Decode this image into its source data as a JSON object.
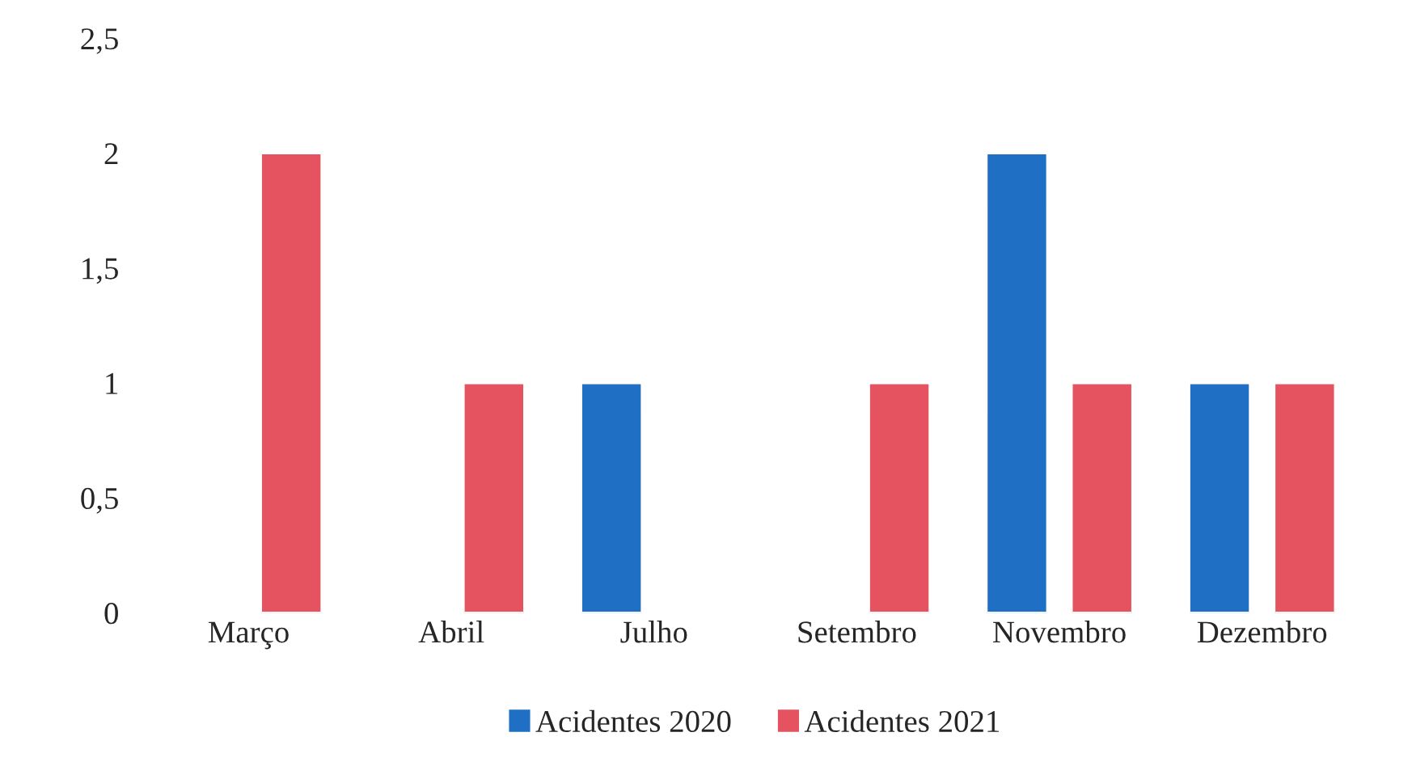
{
  "chart_data": {
    "type": "bar",
    "categories": [
      "Março",
      "Abril",
      "Julho",
      "Setembro",
      "Novembro",
      "Dezembro"
    ],
    "series": [
      {
        "name": "Acidentes 2020",
        "color": "#1f6fc5",
        "values": [
          null,
          null,
          1,
          null,
          2,
          1
        ]
      },
      {
        "name": "Acidentes 2021",
        "color": "#e4535f",
        "values": [
          2,
          1,
          null,
          1,
          1,
          1
        ]
      }
    ],
    "ylim": [
      0,
      2.5
    ],
    "yticks": [
      0,
      {
        "value": 0.5,
        "label": "0,5"
      },
      1,
      {
        "value": 1.5,
        "label": "1,5"
      },
      2,
      {
        "value": 2.5,
        "label": "2,5"
      }
    ],
    "grid": false,
    "legend": "bottom"
  }
}
